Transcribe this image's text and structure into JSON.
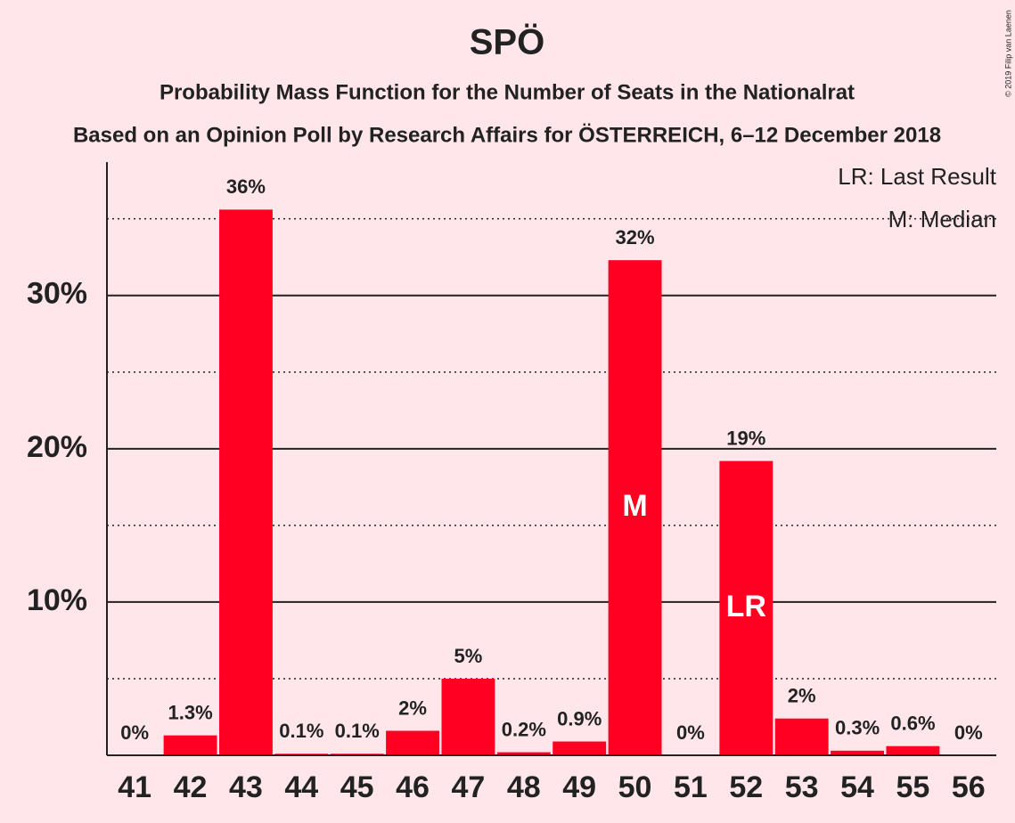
{
  "chart_data": {
    "type": "bar",
    "title": "SPÖ",
    "subtitle": "Probability Mass Function for the Number of Seats in the Nationalrat",
    "subtitle2": "Based on an Opinion Poll by Research Affairs for ÖSTERREICH, 6–12 December 2018",
    "copyright": "© 2019 Filip van Laenen",
    "x": [
      41,
      42,
      43,
      44,
      45,
      46,
      47,
      48,
      49,
      50,
      51,
      52,
      53,
      54,
      55,
      56
    ],
    "xlim": [
      40.5,
      56.5
    ],
    "values": [
      0,
      1.3,
      35.6,
      0.1,
      0.1,
      1.6,
      5.0,
      0.2,
      0.9,
      32.3,
      0,
      19.2,
      2.4,
      0.3,
      0.6,
      0
    ],
    "value_labels": [
      "0%",
      "1.3%",
      "36%",
      "0.1%",
      "0.1%",
      "2%",
      "5%",
      "0.2%",
      "0.9%",
      "32%",
      "0%",
      "19%",
      "2%",
      "0.3%",
      "0.6%",
      "0%"
    ],
    "color": "#ff0022",
    "ylim": [
      0,
      38.7
    ],
    "yticks": [
      {
        "value": 10,
        "label": "10%"
      },
      {
        "value": 20,
        "label": "20%"
      },
      {
        "value": 30,
        "label": "30%"
      }
    ],
    "minor_grid": [
      5,
      15,
      25,
      35
    ],
    "grid": true,
    "markers": [
      {
        "label": "M",
        "x": 50
      },
      {
        "label": "LR",
        "x": 52
      }
    ],
    "legend": [
      "LR: Last Result",
      "M: Median"
    ],
    "legend_position": "top-right"
  }
}
